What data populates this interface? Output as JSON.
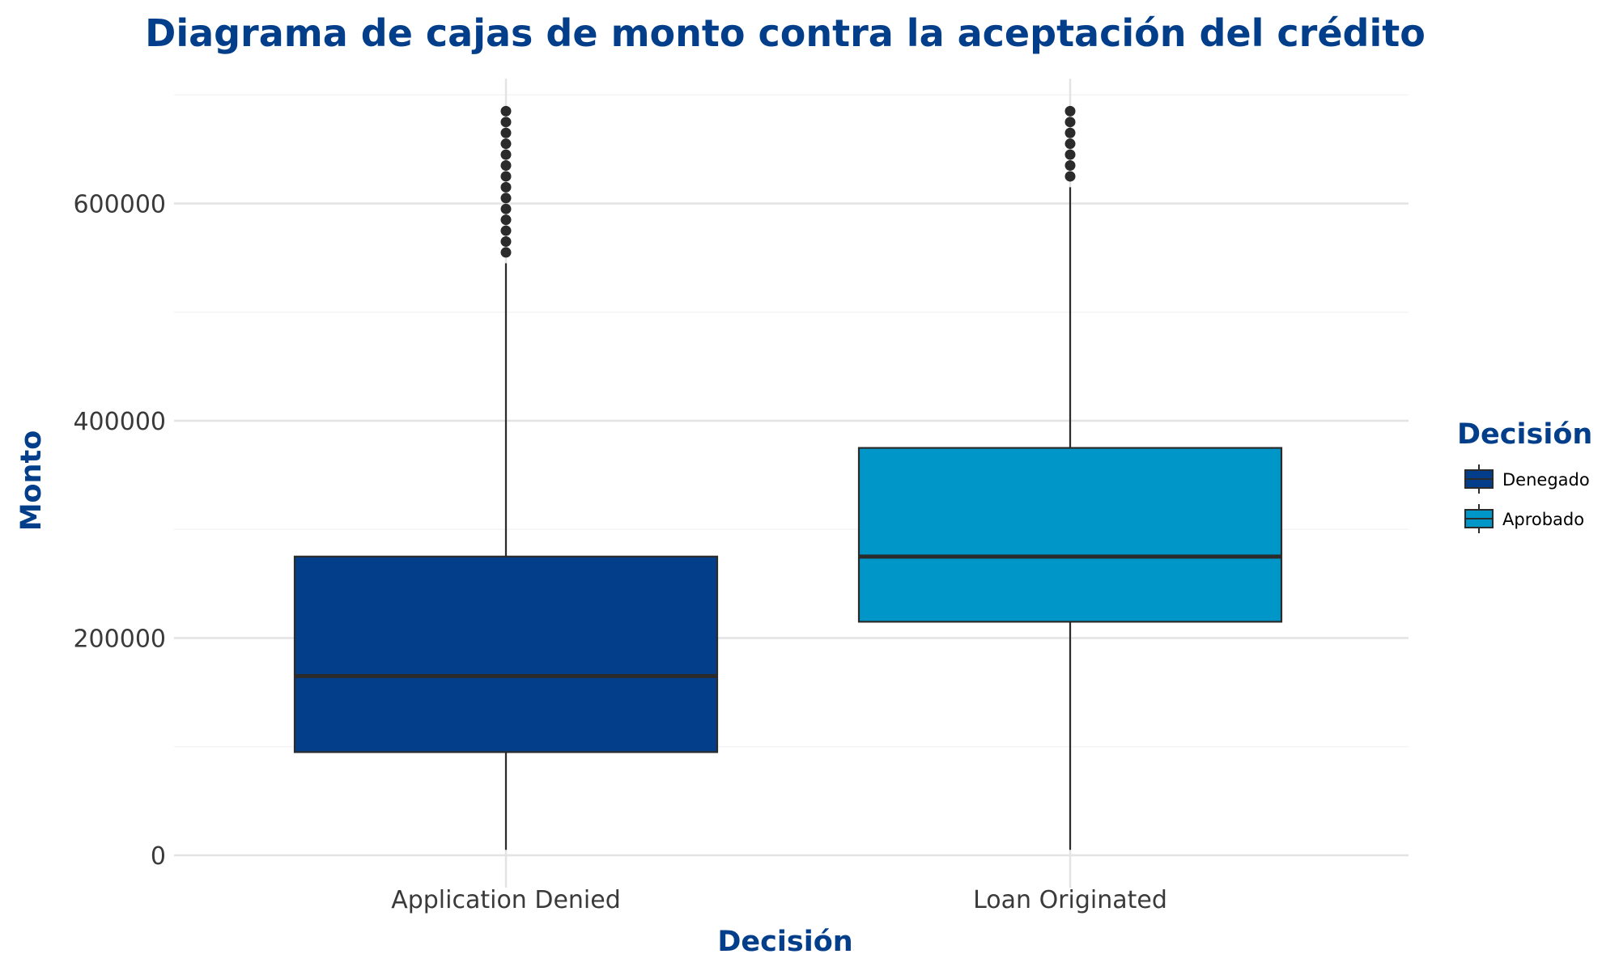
{
  "chart_data": {
    "type": "box",
    "title": "Diagrama de cajas de monto contra la aceptación del crédito",
    "xlabel": "Decisión",
    "ylabel": "Monto",
    "ylim": [
      0,
      700000
    ],
    "yticks": [
      0,
      200000,
      400000,
      600000
    ],
    "ytick_labels": [
      "0",
      "200000",
      "400000",
      "600000"
    ],
    "grid": true,
    "legend": {
      "title": "Decisión",
      "position": "right",
      "entries": [
        {
          "label": "Denegado",
          "color": "#023E8A"
        },
        {
          "label": "Aprobado",
          "color": "#0096C7"
        }
      ]
    },
    "categories": [
      "Application Denied",
      "Loan Originated"
    ],
    "boxes": [
      {
        "category": "Application Denied",
        "legend": "Denegado",
        "color": "#023E8A",
        "whisker_low": 5000,
        "q1": 95000,
        "median": 165000,
        "q3": 275000,
        "whisker_high": 545000,
        "outliers": [
          555000,
          565000,
          575000,
          585000,
          595000,
          605000,
          615000,
          625000,
          635000,
          645000,
          655000,
          665000,
          675000,
          685000
        ]
      },
      {
        "category": "Loan Originated",
        "legend": "Aprobado",
        "color": "#0096C7",
        "whisker_low": 5000,
        "q1": 215000,
        "median": 275000,
        "q3": 375000,
        "whisker_high": 615000,
        "outliers": [
          625000,
          635000,
          645000,
          655000,
          665000,
          675000,
          685000
        ]
      }
    ]
  }
}
